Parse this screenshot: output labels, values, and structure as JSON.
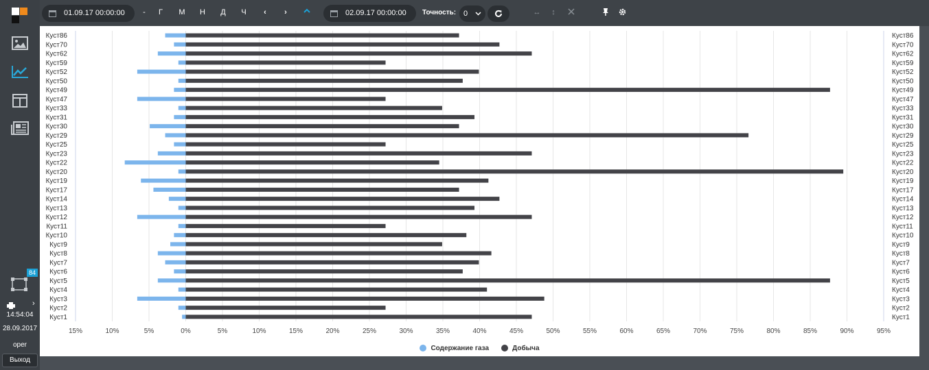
{
  "sidebar": {
    "badge": "84",
    "time": "14:54:04",
    "date": "28.09.2017",
    "user": "oper",
    "exit_label": "Выход"
  },
  "toolbar": {
    "date_from": "01.09.17 00:00:00",
    "dash": "-",
    "btn_year": "Г",
    "btn_month": "М",
    "btn_week": "Н",
    "btn_day": "Д",
    "btn_hour": "Ч",
    "date_to": "02.09.17 00:00:00",
    "accuracy_label": "Точность:",
    "accuracy_value": "0"
  },
  "colors": {
    "gas": "#7cb5ec",
    "production": "#434348"
  },
  "chart_data": {
    "type": "bar",
    "orientation": "horizontal",
    "categories": [
      "Куст86",
      "Куст70",
      "Куст62",
      "Куст59",
      "Куст52",
      "Куст50",
      "Куст49",
      "Куст47",
      "Куст33",
      "Куст31",
      "Куст30",
      "Куст29",
      "Куст25",
      "Куст23",
      "Куст22",
      "Куст20",
      "Куст19",
      "Куст17",
      "Куст14",
      "Куст13",
      "Куст12",
      "Куст11",
      "Куст10",
      "Куст9",
      "Куст8",
      "Куст7",
      "Куст6",
      "Куст5",
      "Куст4",
      "Куст3",
      "Куст2",
      "Куст1"
    ],
    "series": [
      {
        "name": "Содержание газа",
        "values": [
          2.8,
          1.6,
          3.8,
          1.0,
          6.6,
          1.0,
          1.6,
          6.6,
          1.0,
          1.6,
          4.9,
          2.8,
          1.6,
          3.8,
          8.3,
          1.0,
          6.1,
          4.4,
          2.3,
          1.0,
          6.6,
          1.0,
          1.6,
          2.1,
          3.8,
          2.8,
          1.6,
          3.8,
          1.0,
          6.6,
          1.0,
          0.5
        ]
      },
      {
        "name": "Добыча",
        "values": [
          37.2,
          42.7,
          47.1,
          27.2,
          39.9,
          37.7,
          87.7,
          27.2,
          34.9,
          39.3,
          37.2,
          76.6,
          27.2,
          47.1,
          34.5,
          89.5,
          41.2,
          37.2,
          42.7,
          39.3,
          47.1,
          27.2,
          38.2,
          34.9,
          41.6,
          39.9,
          37.7,
          87.7,
          41.0,
          48.8,
          27.2,
          47.1
        ]
      }
    ],
    "x_ticks": [
      "15%",
      "10%",
      "5%",
      "0%",
      "5%",
      "10%",
      "15%",
      "20%",
      "25%",
      "30%",
      "35%",
      "40%",
      "45%",
      "50%",
      "55%",
      "60%",
      "65%",
      "70%",
      "75%",
      "80%",
      "85%",
      "90%",
      "95%"
    ],
    "xlim": [
      -15,
      95
    ],
    "grid": true,
    "legend_position": "bottom-center"
  }
}
